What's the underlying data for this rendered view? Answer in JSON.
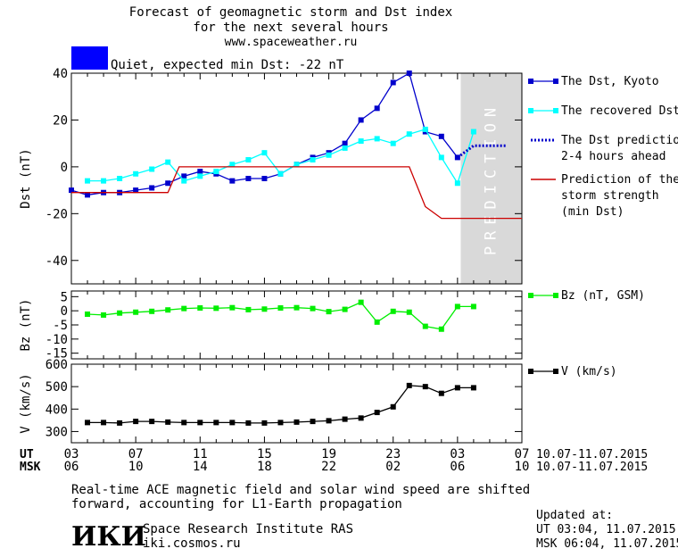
{
  "header": {
    "title_line1": "Forecast of geomagnetic storm and Dst index",
    "title_line2": "for the next several hours",
    "url": "www.spaceweather.ru",
    "status_text": "Quiet, expected min Dst: -22 nT",
    "status_color": "#0000ff"
  },
  "prediction_label": "PREDICTION",
  "time_axis": {
    "ut_label": "UT",
    "msk_label": "MSK",
    "ut_ticks": [
      "03",
      "07",
      "11",
      "15",
      "19",
      "23",
      "03",
      "07"
    ],
    "msk_ticks": [
      "06",
      "10",
      "14",
      "18",
      "22",
      "02",
      "06",
      "10"
    ],
    "ut_range": "10.07-11.07.2015",
    "msk_range": "10.07-11.07.2015"
  },
  "footer": {
    "note_line1": "Real-time ACE magnetic field and solar wind speed are shifted",
    "note_line2": "forward, accounting for L1-Earth propagation",
    "institute": "Space Research Institute RAS",
    "institute_url": "iki.cosmos.ru",
    "logo_text": "ИКИ",
    "updated_label": "Updated at:",
    "updated_ut": "UT   03:04, 11.07.2015",
    "updated_msk": "MSK 06:04, 11.07.2015"
  },
  "chart_data": [
    {
      "type": "line",
      "ylabel": "Dst (nT)",
      "ylim": [
        -50,
        40
      ],
      "yticks": [
        40,
        20,
        0,
        -20,
        -40
      ],
      "xlim": [
        0,
        28
      ],
      "prediction_zone": [
        24.2,
        28
      ],
      "series": [
        {
          "name": "The Dst, Kyoto",
          "color": "#0000cc",
          "marker": "square",
          "x": [
            0,
            1,
            2,
            3,
            4,
            5,
            6,
            7,
            8,
            9,
            10,
            11,
            12,
            13,
            14,
            15,
            16,
            17,
            18,
            19,
            20,
            21,
            22,
            23,
            24
          ],
          "y": [
            -10,
            -12,
            -11,
            -11,
            -10,
            -9,
            -7,
            -4,
            -2,
            -3,
            -6,
            -5,
            -5,
            -3,
            1,
            4,
            6,
            10,
            20,
            25,
            36,
            40,
            15,
            13,
            4
          ]
        },
        {
          "name": "The recovered Dst",
          "color": "#00ffff",
          "marker": "square",
          "x": [
            1,
            2,
            3,
            4,
            5,
            6,
            7,
            8,
            9,
            10,
            11,
            12,
            13,
            14,
            15,
            16,
            17,
            18,
            19,
            20,
            21,
            22,
            23,
            24,
            25
          ],
          "y": [
            -6,
            -6,
            -5,
            -3,
            -1,
            2,
            -6,
            -4,
            -2,
            1,
            3,
            6,
            -3,
            1,
            3,
            5,
            8,
            11,
            12,
            10,
            14,
            16,
            4,
            -7,
            15
          ]
        },
        {
          "name": "The Dst prediction 2-4 hours ahead",
          "color": "#0000cc",
          "dotted": true,
          "x": [
            24,
            25,
            26,
            27
          ],
          "y": [
            4,
            9,
            9,
            9
          ]
        },
        {
          "name": "Prediction of the storm strength (min Dst)",
          "color": "#cc0000",
          "step": true,
          "x": [
            0,
            6,
            6.7,
            21,
            22,
            23,
            28
          ],
          "y": [
            -11,
            -11,
            0,
            0,
            -17,
            -22,
            -22
          ]
        }
      ],
      "legend": [
        {
          "lines": [
            "The Dst, Kyoto"
          ],
          "color": "#0000cc",
          "style": "square"
        },
        {
          "lines": [
            "The recovered Dst"
          ],
          "color": "#00ffff",
          "style": "square"
        },
        {
          "lines": [
            "The Dst prediction",
            "2-4 hours ahead"
          ],
          "color": "#0000cc",
          "style": "dotted"
        },
        {
          "lines": [
            "Prediction of the",
            "storm strength",
            "(min Dst)"
          ],
          "color": "#cc0000",
          "style": "line"
        }
      ]
    },
    {
      "type": "line",
      "ylabel": "Bz (nT)",
      "ylim": [
        -17,
        7
      ],
      "yticks": [
        5,
        0,
        -5,
        -10,
        -15
      ],
      "xlim": [
        0,
        28
      ],
      "series": [
        {
          "name": "Bz (nT, GSM)",
          "color": "#00ee00",
          "marker": "square",
          "x": [
            1,
            2,
            3,
            4,
            5,
            6,
            7,
            8,
            9,
            10,
            11,
            12,
            13,
            14,
            15,
            16,
            17,
            18,
            19,
            20,
            21,
            22,
            23,
            24,
            25
          ],
          "y": [
            -1.2,
            -1.5,
            -0.8,
            -0.5,
            -0.2,
            0.3,
            0.8,
            1.0,
            0.9,
            1.1,
            0.4,
            0.6,
            1.0,
            1.1,
            0.8,
            -0.3,
            0.5,
            3.0,
            -4.0,
            -0.2,
            -0.5,
            -5.5,
            -6.5,
            1.5,
            1.5
          ]
        }
      ],
      "legend": [
        {
          "lines": [
            "Bz (nT, GSM)"
          ],
          "color": "#00ee00",
          "style": "square"
        }
      ]
    },
    {
      "type": "line",
      "ylabel": "V (km/s)",
      "ylim": [
        250,
        600
      ],
      "yticks": [
        600,
        500,
        400,
        300
      ],
      "xlim": [
        0,
        28
      ],
      "series": [
        {
          "name": "V (km/s)",
          "color": "#000000",
          "marker": "square",
          "x": [
            1,
            2,
            3,
            4,
            5,
            6,
            7,
            8,
            9,
            10,
            11,
            12,
            13,
            14,
            15,
            16,
            17,
            18,
            19,
            20,
            21,
            22,
            23,
            24,
            25
          ],
          "y": [
            340,
            340,
            338,
            345,
            345,
            342,
            340,
            340,
            340,
            340,
            338,
            338,
            340,
            342,
            345,
            348,
            355,
            360,
            385,
            410,
            505,
            500,
            470,
            495,
            495
          ]
        }
      ],
      "legend": [
        {
          "lines": [
            "V (km/s)"
          ],
          "color": "#000000",
          "style": "square"
        }
      ]
    }
  ]
}
